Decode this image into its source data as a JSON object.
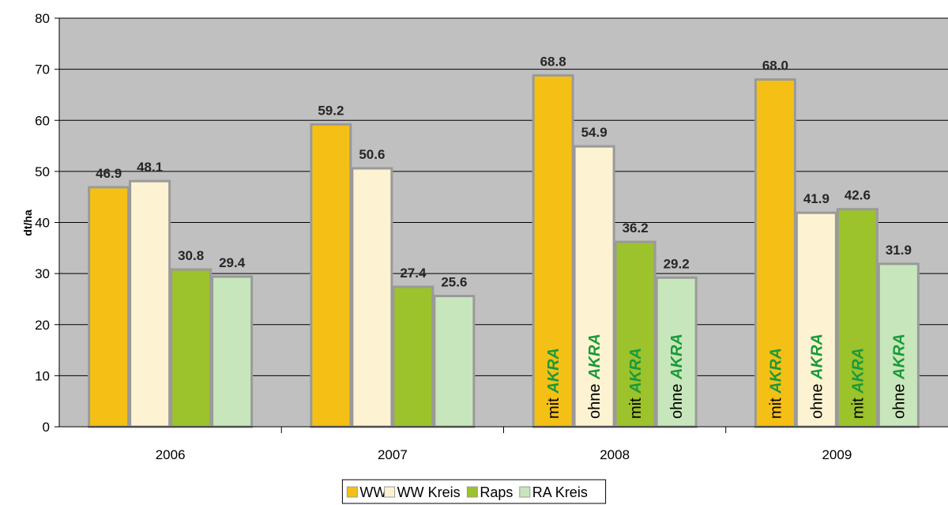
{
  "chart_data": {
    "type": "bar",
    "categories": [
      "2006",
      "2007",
      "2008",
      "2009"
    ],
    "series": [
      {
        "name": "WW",
        "color": "#f5c016",
        "values": [
          46.9,
          59.2,
          68.8,
          68.0
        ]
      },
      {
        "name": "WW Kreis",
        "color": "#fdf3d2",
        "values": [
          48.1,
          50.6,
          54.9,
          41.9
        ]
      },
      {
        "name": "Raps",
        "color": "#9cc22c",
        "values": [
          30.8,
          27.4,
          36.2,
          42.6
        ]
      },
      {
        "name": "RA Kreis",
        "color": "#c8e6bb",
        "values": [
          29.4,
          25.6,
          29.2,
          31.9
        ]
      }
    ],
    "value_labels": [
      [
        "46.9",
        "59.2",
        "68.8",
        "68.0"
      ],
      [
        "48.1",
        "50.6",
        "54.9",
        "41.9"
      ],
      [
        "30.8",
        "27.4",
        "36.2",
        "42.6"
      ],
      [
        "29.4",
        "25.6",
        "29.2",
        "31.9"
      ]
    ],
    "xlabel": "",
    "ylabel": "dt/ha",
    "ylim": [
      0,
      80
    ],
    "yticks": [
      "0",
      "10",
      "20",
      "30",
      "40",
      "50",
      "60",
      "70",
      "80"
    ],
    "grid": true,
    "plot_background": "#c0c0c0",
    "bar_border": "#9a9a9a",
    "legend_placement": "bottom-center",
    "annotations": {
      "categories": [
        "2008",
        "2009"
      ],
      "texts": [
        "mit",
        "ohne",
        "mit",
        "ohne"
      ],
      "highlight": "AKRA",
      "highlight_color": "#1a9a3a"
    }
  }
}
